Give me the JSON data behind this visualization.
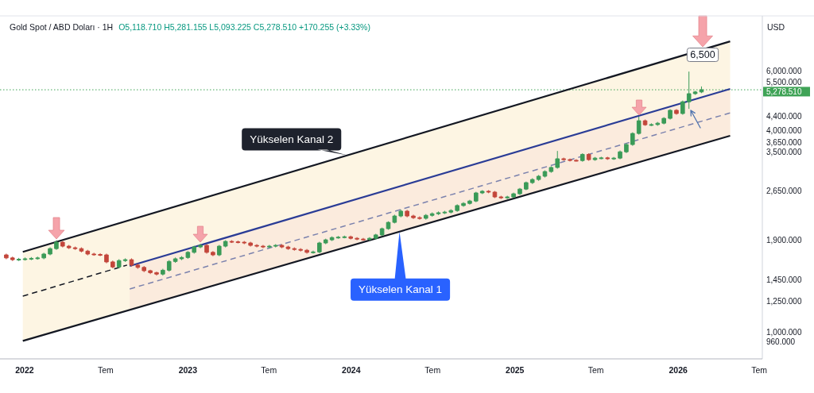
{
  "chart_data": {
    "type": "candlestick",
    "title": "Gold Spot / ABD Doları · 1H",
    "subtitle": "O5,118.710 H5,281.155 L5,093.225 C5,278.510 +170.255 (+3.33%)",
    "ylabel": "USD",
    "log": true,
    "x": [
      "2021-11-21",
      "2021-12-05",
      "2021-12-19",
      "2022-01-02",
      "2022-01-16",
      "2022-01-30",
      "2022-02-13",
      "2022-02-27",
      "2022-03-13",
      "2022-03-27",
      "2022-04-10",
      "2022-04-24",
      "2022-05-08",
      "2022-05-22",
      "2022-06-05",
      "2022-06-19",
      "2022-07-03",
      "2022-07-17",
      "2022-07-31",
      "2022-08-14",
      "2022-08-28",
      "2022-09-11",
      "2022-09-25",
      "2022-10-09",
      "2022-10-23",
      "2022-11-06",
      "2022-11-20",
      "2022-12-04",
      "2022-12-18",
      "2023-01-01",
      "2023-01-15",
      "2023-01-29",
      "2023-02-12",
      "2023-02-26",
      "2023-03-12",
      "2023-03-26",
      "2023-04-09",
      "2023-04-23",
      "2023-05-07",
      "2023-05-21",
      "2023-06-04",
      "2023-06-18",
      "2023-07-02",
      "2023-07-16",
      "2023-07-30",
      "2023-08-13",
      "2023-08-27",
      "2023-09-10",
      "2023-09-24",
      "2023-10-08",
      "2023-10-22",
      "2023-11-05",
      "2023-11-19",
      "2023-12-03",
      "2023-12-17",
      "2023-12-31",
      "2024-01-14",
      "2024-01-28",
      "2024-02-11",
      "2024-02-25",
      "2024-03-10",
      "2024-03-24",
      "2024-04-07",
      "2024-04-21",
      "2024-05-05",
      "2024-05-19",
      "2024-06-02",
      "2024-06-16",
      "2024-06-30",
      "2024-07-14",
      "2024-07-28",
      "2024-08-11",
      "2024-08-25",
      "2024-09-08",
      "2024-09-22",
      "2024-10-06",
      "2024-10-20",
      "2024-11-03",
      "2024-11-17",
      "2024-12-01",
      "2024-12-15",
      "2024-12-29",
      "2025-01-12",
      "2025-01-26",
      "2025-02-09",
      "2025-02-23",
      "2025-03-09",
      "2025-03-23",
      "2025-04-06",
      "2025-04-20",
      "2025-05-04",
      "2025-05-18",
      "2025-06-01",
      "2025-06-15",
      "2025-06-29",
      "2025-07-13",
      "2025-07-27",
      "2025-08-10",
      "2025-08-24",
      "2025-09-07",
      "2025-09-21",
      "2025-10-05",
      "2025-10-19",
      "2025-11-02",
      "2025-11-16",
      "2025-11-30",
      "2025-12-14",
      "2025-12-28",
      "2026-01-11",
      "2026-01-25",
      "2026-02-08",
      "2026-02-22"
    ],
    "ohlc": [
      [
        1715,
        1730,
        1665,
        1680
      ],
      [
        1680,
        1695,
        1645,
        1660
      ],
      [
        1660,
        1680,
        1645,
        1665
      ],
      [
        1665,
        1685,
        1650,
        1670
      ],
      [
        1670,
        1690,
        1655,
        1675
      ],
      [
        1675,
        1695,
        1660,
        1680
      ],
      [
        1680,
        1740,
        1665,
        1725
      ],
      [
        1725,
        1805,
        1710,
        1790
      ],
      [
        1790,
        1895,
        1775,
        1870
      ],
      [
        1870,
        1885,
        1805,
        1820
      ],
      [
        1820,
        1835,
        1785,
        1800
      ],
      [
        1800,
        1815,
        1775,
        1790
      ],
      [
        1790,
        1805,
        1745,
        1760
      ],
      [
        1760,
        1775,
        1710,
        1725
      ],
      [
        1725,
        1740,
        1705,
        1720
      ],
      [
        1720,
        1735,
        1700,
        1715
      ],
      [
        1715,
        1730,
        1620,
        1635
      ],
      [
        1635,
        1650,
        1565,
        1580
      ],
      [
        1580,
        1665,
        1565,
        1650
      ],
      [
        1650,
        1675,
        1635,
        1660
      ],
      [
        1660,
        1675,
        1585,
        1600
      ],
      [
        1600,
        1615,
        1560,
        1575
      ],
      [
        1575,
        1590,
        1525,
        1540
      ],
      [
        1540,
        1550,
        1505,
        1520
      ],
      [
        1520,
        1530,
        1490,
        1505
      ],
      [
        1505,
        1560,
        1490,
        1545
      ],
      [
        1545,
        1655,
        1530,
        1640
      ],
      [
        1640,
        1685,
        1625,
        1670
      ],
      [
        1670,
        1700,
        1655,
        1685
      ],
      [
        1685,
        1760,
        1670,
        1745
      ],
      [
        1745,
        1825,
        1730,
        1810
      ],
      [
        1810,
        1850,
        1795,
        1830
      ],
      [
        1830,
        1845,
        1730,
        1745
      ],
      [
        1745,
        1760,
        1700,
        1715
      ],
      [
        1715,
        1835,
        1700,
        1820
      ],
      [
        1820,
        1895,
        1805,
        1880
      ],
      [
        1880,
        1895,
        1860,
        1875
      ],
      [
        1875,
        1890,
        1855,
        1870
      ],
      [
        1870,
        1885,
        1845,
        1860
      ],
      [
        1860,
        1875,
        1815,
        1830
      ],
      [
        1830,
        1845,
        1805,
        1820
      ],
      [
        1820,
        1835,
        1795,
        1810
      ],
      [
        1810,
        1835,
        1795,
        1820
      ],
      [
        1820,
        1845,
        1805,
        1830
      ],
      [
        1830,
        1845,
        1795,
        1810
      ],
      [
        1810,
        1825,
        1775,
        1790
      ],
      [
        1790,
        1805,
        1765,
        1780
      ],
      [
        1780,
        1795,
        1755,
        1770
      ],
      [
        1770,
        1785,
        1730,
        1745
      ],
      [
        1745,
        1765,
        1730,
        1750
      ],
      [
        1750,
        1875,
        1735,
        1860
      ],
      [
        1860,
        1915,
        1845,
        1900
      ],
      [
        1900,
        1945,
        1885,
        1930
      ],
      [
        1930,
        1950,
        1915,
        1935
      ],
      [
        1935,
        1955,
        1920,
        1940
      ],
      [
        1940,
        1955,
        1905,
        1920
      ],
      [
        1920,
        1935,
        1895,
        1910
      ],
      [
        1910,
        1925,
        1890,
        1905
      ],
      [
        1905,
        1935,
        1890,
        1920
      ],
      [
        1920,
        1980,
        1905,
        1965
      ],
      [
        1965,
        2065,
        1950,
        2050
      ],
      [
        2050,
        2155,
        2035,
        2140
      ],
      [
        2140,
        2255,
        2125,
        2235
      ],
      [
        2235,
        2335,
        2215,
        2310
      ],
      [
        2310,
        2330,
        2215,
        2235
      ],
      [
        2235,
        2255,
        2190,
        2210
      ],
      [
        2210,
        2230,
        2180,
        2200
      ],
      [
        2200,
        2265,
        2180,
        2245
      ],
      [
        2245,
        2290,
        2225,
        2270
      ],
      [
        2270,
        2305,
        2250,
        2285
      ],
      [
        2285,
        2315,
        2265,
        2295
      ],
      [
        2295,
        2340,
        2275,
        2320
      ],
      [
        2320,
        2420,
        2300,
        2400
      ],
      [
        2400,
        2455,
        2380,
        2435
      ],
      [
        2435,
        2495,
        2415,
        2475
      ],
      [
        2475,
        2635,
        2455,
        2615
      ],
      [
        2615,
        2665,
        2595,
        2645
      ],
      [
        2645,
        2665,
        2610,
        2630
      ],
      [
        2630,
        2650,
        2525,
        2545
      ],
      [
        2545,
        2565,
        2510,
        2530
      ],
      [
        2530,
        2565,
        2510,
        2545
      ],
      [
        2545,
        2620,
        2525,
        2600
      ],
      [
        2600,
        2705,
        2580,
        2685
      ],
      [
        2685,
        2825,
        2665,
        2805
      ],
      [
        2805,
        2890,
        2780,
        2865
      ],
      [
        2865,
        2955,
        2840,
        2930
      ],
      [
        2930,
        3050,
        2905,
        3025
      ],
      [
        3025,
        3135,
        3000,
        3110
      ],
      [
        3110,
        3480,
        3085,
        3300
      ],
      [
        3300,
        3325,
        3255,
        3280
      ],
      [
        3280,
        3305,
        3240,
        3265
      ],
      [
        3265,
        3290,
        3240,
        3260
      ],
      [
        3260,
        3425,
        3235,
        3400
      ],
      [
        3400,
        3425,
        3255,
        3280
      ],
      [
        3280,
        3340,
        3255,
        3315
      ],
      [
        3315,
        3345,
        3290,
        3320
      ],
      [
        3320,
        3345,
        3275,
        3300
      ],
      [
        3300,
        3340,
        3275,
        3315
      ],
      [
        3315,
        3490,
        3290,
        3460
      ],
      [
        3460,
        3665,
        3430,
        3635
      ],
      [
        3635,
        3950,
        3605,
        3920
      ],
      [
        3920,
        4395,
        3890,
        4275
      ],
      [
        4275,
        4310,
        4130,
        4160
      ],
      [
        4160,
        4200,
        4125,
        4165
      ],
      [
        4165,
        4240,
        4130,
        4205
      ],
      [
        4205,
        4380,
        4170,
        4345
      ],
      [
        4345,
        4625,
        4310,
        4590
      ],
      [
        4590,
        4625,
        4455,
        4490
      ],
      [
        4490,
        4905,
        4455,
        4865
      ],
      [
        4865,
        5975,
        4635,
        5140
      ],
      [
        5140,
        5240,
        5100,
        5200
      ],
      [
        5200,
        5400,
        5160,
        5280
      ]
    ],
    "series": [
      {
        "type": "line",
        "x": [
          "2021-12-28",
          "2026-04-27"
        ],
        "values": [
          1750,
          7340
        ],
        "lower": [
          955,
          3860
        ],
        "upper": [
          1750,
          7340
        ],
        "color": "#131722"
      },
      {
        "type": "line",
        "x": [
          "2021-12-28",
          "2026-04-27"
        ],
        "values": [
          955,
          3860
        ],
        "color": "#131722"
      },
      {
        "type": "line",
        "x": [
          "2021-12-28",
          "2022-08-18"
        ],
        "values": [
          1295,
          1600
        ],
        "color": "#131722",
        "line_style": "dashed"
      },
      {
        "type": "line",
        "x": [
          "2022-08-24",
          "2026-04-27"
        ],
        "values": [
          1590,
          5310
        ],
        "color": "#2a3c96"
      },
      {
        "type": "line",
        "x": [
          "2022-08-24",
          "2026-04-27"
        ],
        "values": [
          1360,
          4510
        ],
        "lower": [
          1180,
          3860
        ],
        "upper": [
          1590,
          5310
        ],
        "color": "#7b82ad",
        "line_style": "dashed"
      }
    ],
    "xlim": [
      "2021-11-07",
      "2026-07-08"
    ],
    "xticks": [
      {
        "value": "2022-01-01",
        "label": "2022"
      },
      {
        "value": "2022-07-01",
        "label": "Tem"
      },
      {
        "value": "2023-01-01",
        "label": "2023"
      },
      {
        "value": "2023-07-01",
        "label": "Tem"
      },
      {
        "value": "2024-01-01",
        "label": "2024"
      },
      {
        "value": "2024-07-01",
        "label": "Tem"
      },
      {
        "value": "2025-01-01",
        "label": "2025"
      },
      {
        "value": "2025-07-01",
        "label": "Tem"
      },
      {
        "value": "2026-01-01",
        "label": "2026"
      },
      {
        "value": "2026-07-01",
        "label": "Tem"
      }
    ],
    "ylim": [
      845,
      8730
    ],
    "yticks": [
      {
        "value": 960,
        "label": "960.000"
      },
      {
        "value": 1000,
        "label": "1,000.000"
      },
      {
        "value": 1250,
        "label": "1,250.000"
      },
      {
        "value": 1450,
        "label": "1,450.000"
      },
      {
        "value": 1900,
        "label": "1,900.000"
      },
      {
        "value": 2650,
        "label": "2,650.000"
      },
      {
        "value": 3500,
        "label": "3,500.000"
      },
      {
        "value": 3650,
        "label": "3,650.000"
      },
      {
        "value": 4000,
        "label": "4,000.000"
      },
      {
        "value": 4400,
        "label": "4,400.000"
      },
      {
        "value": 5500,
        "label": "5,500.000"
      },
      {
        "value": 6000,
        "label": "6,000.000"
      }
    ],
    "ref_lines": [
      {
        "axis": "y",
        "value": 5278.51,
        "label": "5,278.510",
        "color": "#3fa356",
        "line_style": "dotted"
      }
    ],
    "annotations": [
      {
        "text": "Yükselen Kanal 2",
        "x": "2023-12-23",
        "y": 3380
      },
      {
        "text": "Yükselen Kanal 1",
        "x": "2024-04-18",
        "y": 2010
      },
      "6,500"
    ]
  }
}
